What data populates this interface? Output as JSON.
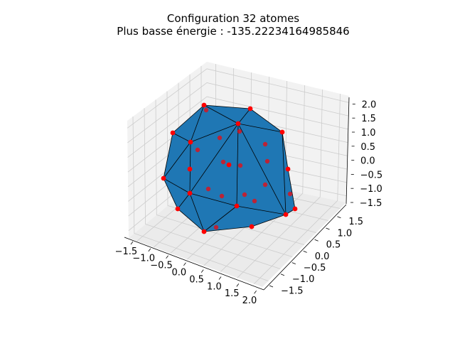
{
  "chart_data": {
    "type": "scatter",
    "projection": "3d",
    "title_line1": "Configuration 32 atomes",
    "title_line2": "Plus basse énergie : -135.22234164985846",
    "xlabel": "",
    "ylabel": "",
    "zlabel": "",
    "grid": true,
    "x_ticks": [
      "−1.5",
      "−1.0",
      "−0.5",
      "0.0",
      "0.5",
      "1.0",
      "1.5",
      "2.0"
    ],
    "y_ticks": [
      "−1.5",
      "−1.0",
      "−0.5",
      "0.0",
      "0.5",
      "1.0",
      "1.5"
    ],
    "z_ticks": [
      "−1.5",
      "−1.0",
      "−0.5",
      "0.0",
      "0.5",
      "1.0",
      "1.5",
      "2.0"
    ],
    "xlim": [
      -1.5,
      2.0
    ],
    "ylim": [
      -1.5,
      1.5
    ],
    "zlim": [
      -1.5,
      2.0
    ],
    "surface": {
      "name": "convex hull",
      "color": "#1f77b4",
      "edge_color": "#000000"
    },
    "points": {
      "color": "#ff0000",
      "count": 32
    }
  },
  "colors": {
    "surface": "#1f77b4",
    "points": "#ff0000",
    "pane": "#f2f2f2",
    "grid": "#cccccc"
  }
}
